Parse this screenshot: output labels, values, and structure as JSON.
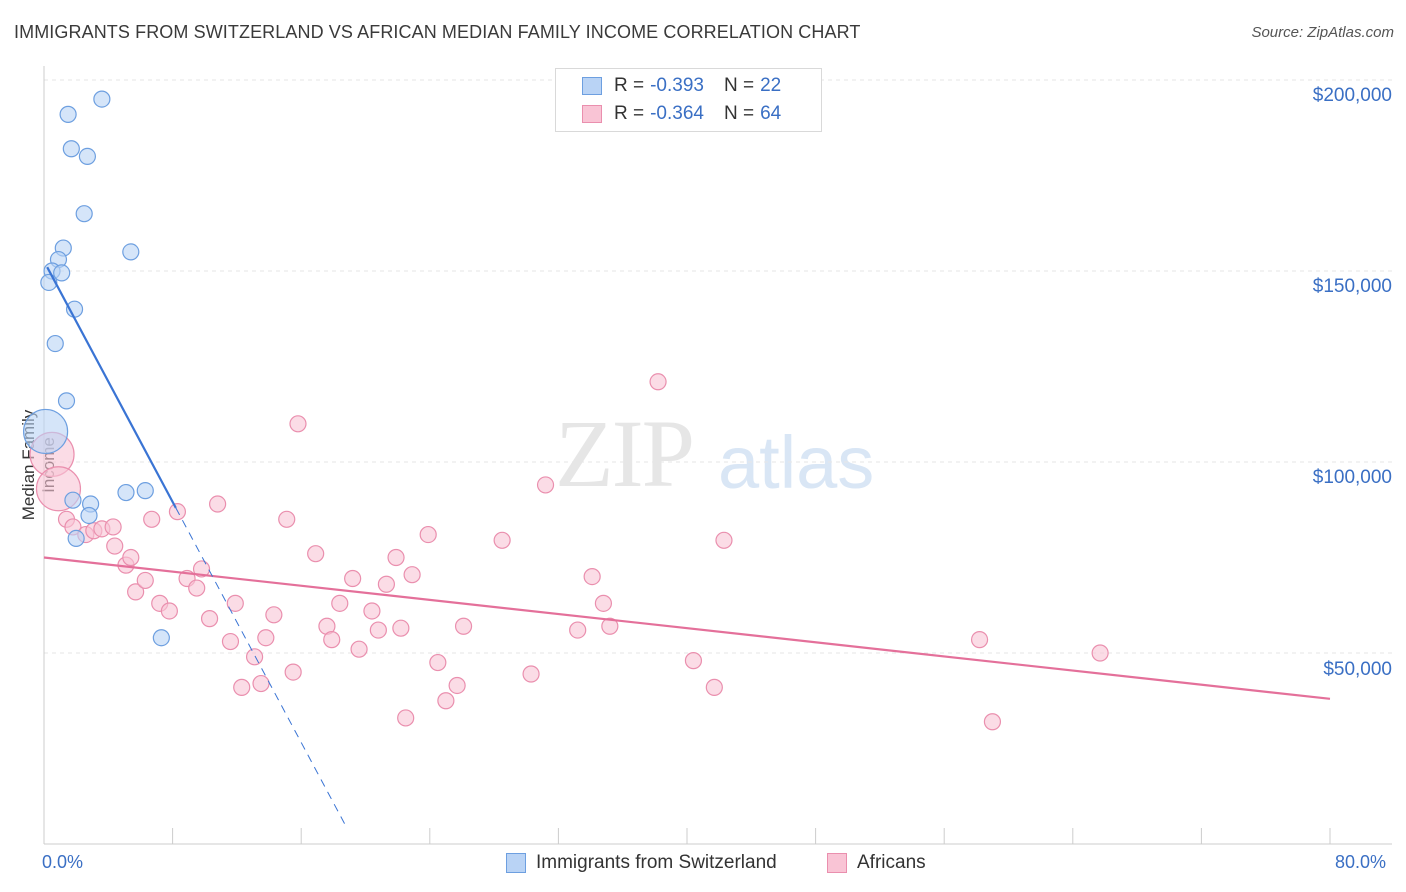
{
  "title": "IMMIGRANTS FROM SWITZERLAND VS AFRICAN MEDIAN FAMILY INCOME CORRELATION CHART",
  "source": "Source: ZipAtlas.com",
  "watermark": {
    "zip": "ZIP",
    "atlas": "atlas"
  },
  "legend": {
    "r_label": "R =",
    "n_label": "N =",
    "series": [
      {
        "name": "Immigrants from Switzerland",
        "r": "-0.393",
        "n": "22",
        "fill": "#b9d3f5",
        "stroke": "#6d9fe0"
      },
      {
        "name": "Africans",
        "r": "-0.364",
        "n": "64",
        "fill": "#f9c4d5",
        "stroke": "#ea8fae"
      }
    ]
  },
  "chart_data": {
    "type": "scatter",
    "title": "IMMIGRANTS FROM SWITZERLAND VS AFRICAN MEDIAN FAMILY INCOME CORRELATION CHART",
    "xlabel": "",
    "ylabel": "Median Family Income",
    "xlim": [
      0,
      80
    ],
    "ylim": [
      0,
      200000
    ],
    "x_tick_labels": [
      "0.0%",
      "80.0%"
    ],
    "y_ticks": [
      50000,
      100000,
      150000,
      200000
    ],
    "y_tick_labels": [
      "$50,000",
      "$100,000",
      "$150,000",
      "$200,000"
    ],
    "grid": true,
    "series": [
      {
        "name": "Immigrants from Switzerland",
        "color": "#6d9fe0",
        "trend_color": "#3a74d4",
        "trend": {
          "x0": 0.2,
          "y0": 151000,
          "x1": 8.2,
          "y1": 88000,
          "dash_x1": 18.8
        },
        "points": [
          {
            "x": 3.6,
            "y": 195000
          },
          {
            "x": 1.5,
            "y": 191000
          },
          {
            "x": 1.7,
            "y": 182000
          },
          {
            "x": 2.7,
            "y": 180000
          },
          {
            "x": 2.5,
            "y": 165000
          },
          {
            "x": 1.2,
            "y": 156000
          },
          {
            "x": 5.4,
            "y": 155000
          },
          {
            "x": 0.9,
            "y": 153000
          },
          {
            "x": 0.5,
            "y": 150000
          },
          {
            "x": 1.1,
            "y": 149500
          },
          {
            "x": 0.3,
            "y": 147000
          },
          {
            "x": 1.9,
            "y": 140000
          },
          {
            "x": 0.7,
            "y": 131000
          },
          {
            "x": 1.4,
            "y": 116000
          },
          {
            "x": 0.1,
            "y": 108000,
            "big": true
          },
          {
            "x": 5.1,
            "y": 92000
          },
          {
            "x": 6.3,
            "y": 92500
          },
          {
            "x": 1.8,
            "y": 90000
          },
          {
            "x": 2.9,
            "y": 89000
          },
          {
            "x": 2.8,
            "y": 86000
          },
          {
            "x": 2.0,
            "y": 80000
          },
          {
            "x": 7.3,
            "y": 54000
          }
        ]
      },
      {
        "name": "Africans",
        "color": "#ea8fae",
        "trend_color": "#e4709a",
        "trend": {
          "x0": 0,
          "y0": 75000,
          "x1": 80,
          "y1": 38000
        },
        "points": [
          {
            "x": 0.5,
            "y": 102000,
            "big": true
          },
          {
            "x": 0.9,
            "y": 93000,
            "big": true
          },
          {
            "x": 1.4,
            "y": 85000
          },
          {
            "x": 1.8,
            "y": 83000
          },
          {
            "x": 2.6,
            "y": 81000
          },
          {
            "x": 3.1,
            "y": 82000
          },
          {
            "x": 3.6,
            "y": 82500
          },
          {
            "x": 4.3,
            "y": 83000
          },
          {
            "x": 4.4,
            "y": 78000
          },
          {
            "x": 5.1,
            "y": 73000
          },
          {
            "x": 5.4,
            "y": 75000
          },
          {
            "x": 5.7,
            "y": 66000
          },
          {
            "x": 6.3,
            "y": 69000
          },
          {
            "x": 6.7,
            "y": 85000
          },
          {
            "x": 7.2,
            "y": 63000
          },
          {
            "x": 7.8,
            "y": 61000
          },
          {
            "x": 8.3,
            "y": 87000
          },
          {
            "x": 8.9,
            "y": 69500
          },
          {
            "x": 9.5,
            "y": 67000
          },
          {
            "x": 9.8,
            "y": 72000
          },
          {
            "x": 10.3,
            "y": 59000
          },
          {
            "x": 10.8,
            "y": 89000
          },
          {
            "x": 11.6,
            "y": 53000
          },
          {
            "x": 11.9,
            "y": 63000
          },
          {
            "x": 12.3,
            "y": 41000
          },
          {
            "x": 13.1,
            "y": 49000
          },
          {
            "x": 13.5,
            "y": 42000
          },
          {
            "x": 13.8,
            "y": 54000
          },
          {
            "x": 14.3,
            "y": 60000
          },
          {
            "x": 15.1,
            "y": 85000
          },
          {
            "x": 15.5,
            "y": 45000
          },
          {
            "x": 15.8,
            "y": 110000
          },
          {
            "x": 16.9,
            "y": 76000
          },
          {
            "x": 17.6,
            "y": 57000
          },
          {
            "x": 17.9,
            "y": 53500
          },
          {
            "x": 18.4,
            "y": 63000
          },
          {
            "x": 19.2,
            "y": 69500
          },
          {
            "x": 19.6,
            "y": 51000
          },
          {
            "x": 20.4,
            "y": 61000
          },
          {
            "x": 20.8,
            "y": 56000
          },
          {
            "x": 21.3,
            "y": 68000
          },
          {
            "x": 21.9,
            "y": 75000
          },
          {
            "x": 22.2,
            "y": 56500
          },
          {
            "x": 22.5,
            "y": 33000
          },
          {
            "x": 22.9,
            "y": 70500
          },
          {
            "x": 23.9,
            "y": 81000
          },
          {
            "x": 24.5,
            "y": 47500
          },
          {
            "x": 25.0,
            "y": 37500
          },
          {
            "x": 25.7,
            "y": 41500
          },
          {
            "x": 26.1,
            "y": 57000
          },
          {
            "x": 28.5,
            "y": 79500
          },
          {
            "x": 30.3,
            "y": 44500
          },
          {
            "x": 31.2,
            "y": 94000
          },
          {
            "x": 33.2,
            "y": 56000
          },
          {
            "x": 34.1,
            "y": 70000
          },
          {
            "x": 34.8,
            "y": 63000
          },
          {
            "x": 35.2,
            "y": 57000
          },
          {
            "x": 38.2,
            "y": 121000
          },
          {
            "x": 40.4,
            "y": 48000
          },
          {
            "x": 41.7,
            "y": 41000
          },
          {
            "x": 42.3,
            "y": 79500
          },
          {
            "x": 58.2,
            "y": 53500
          },
          {
            "x": 59.0,
            "y": 32000
          },
          {
            "x": 65.7,
            "y": 50000
          }
        ]
      }
    ]
  }
}
